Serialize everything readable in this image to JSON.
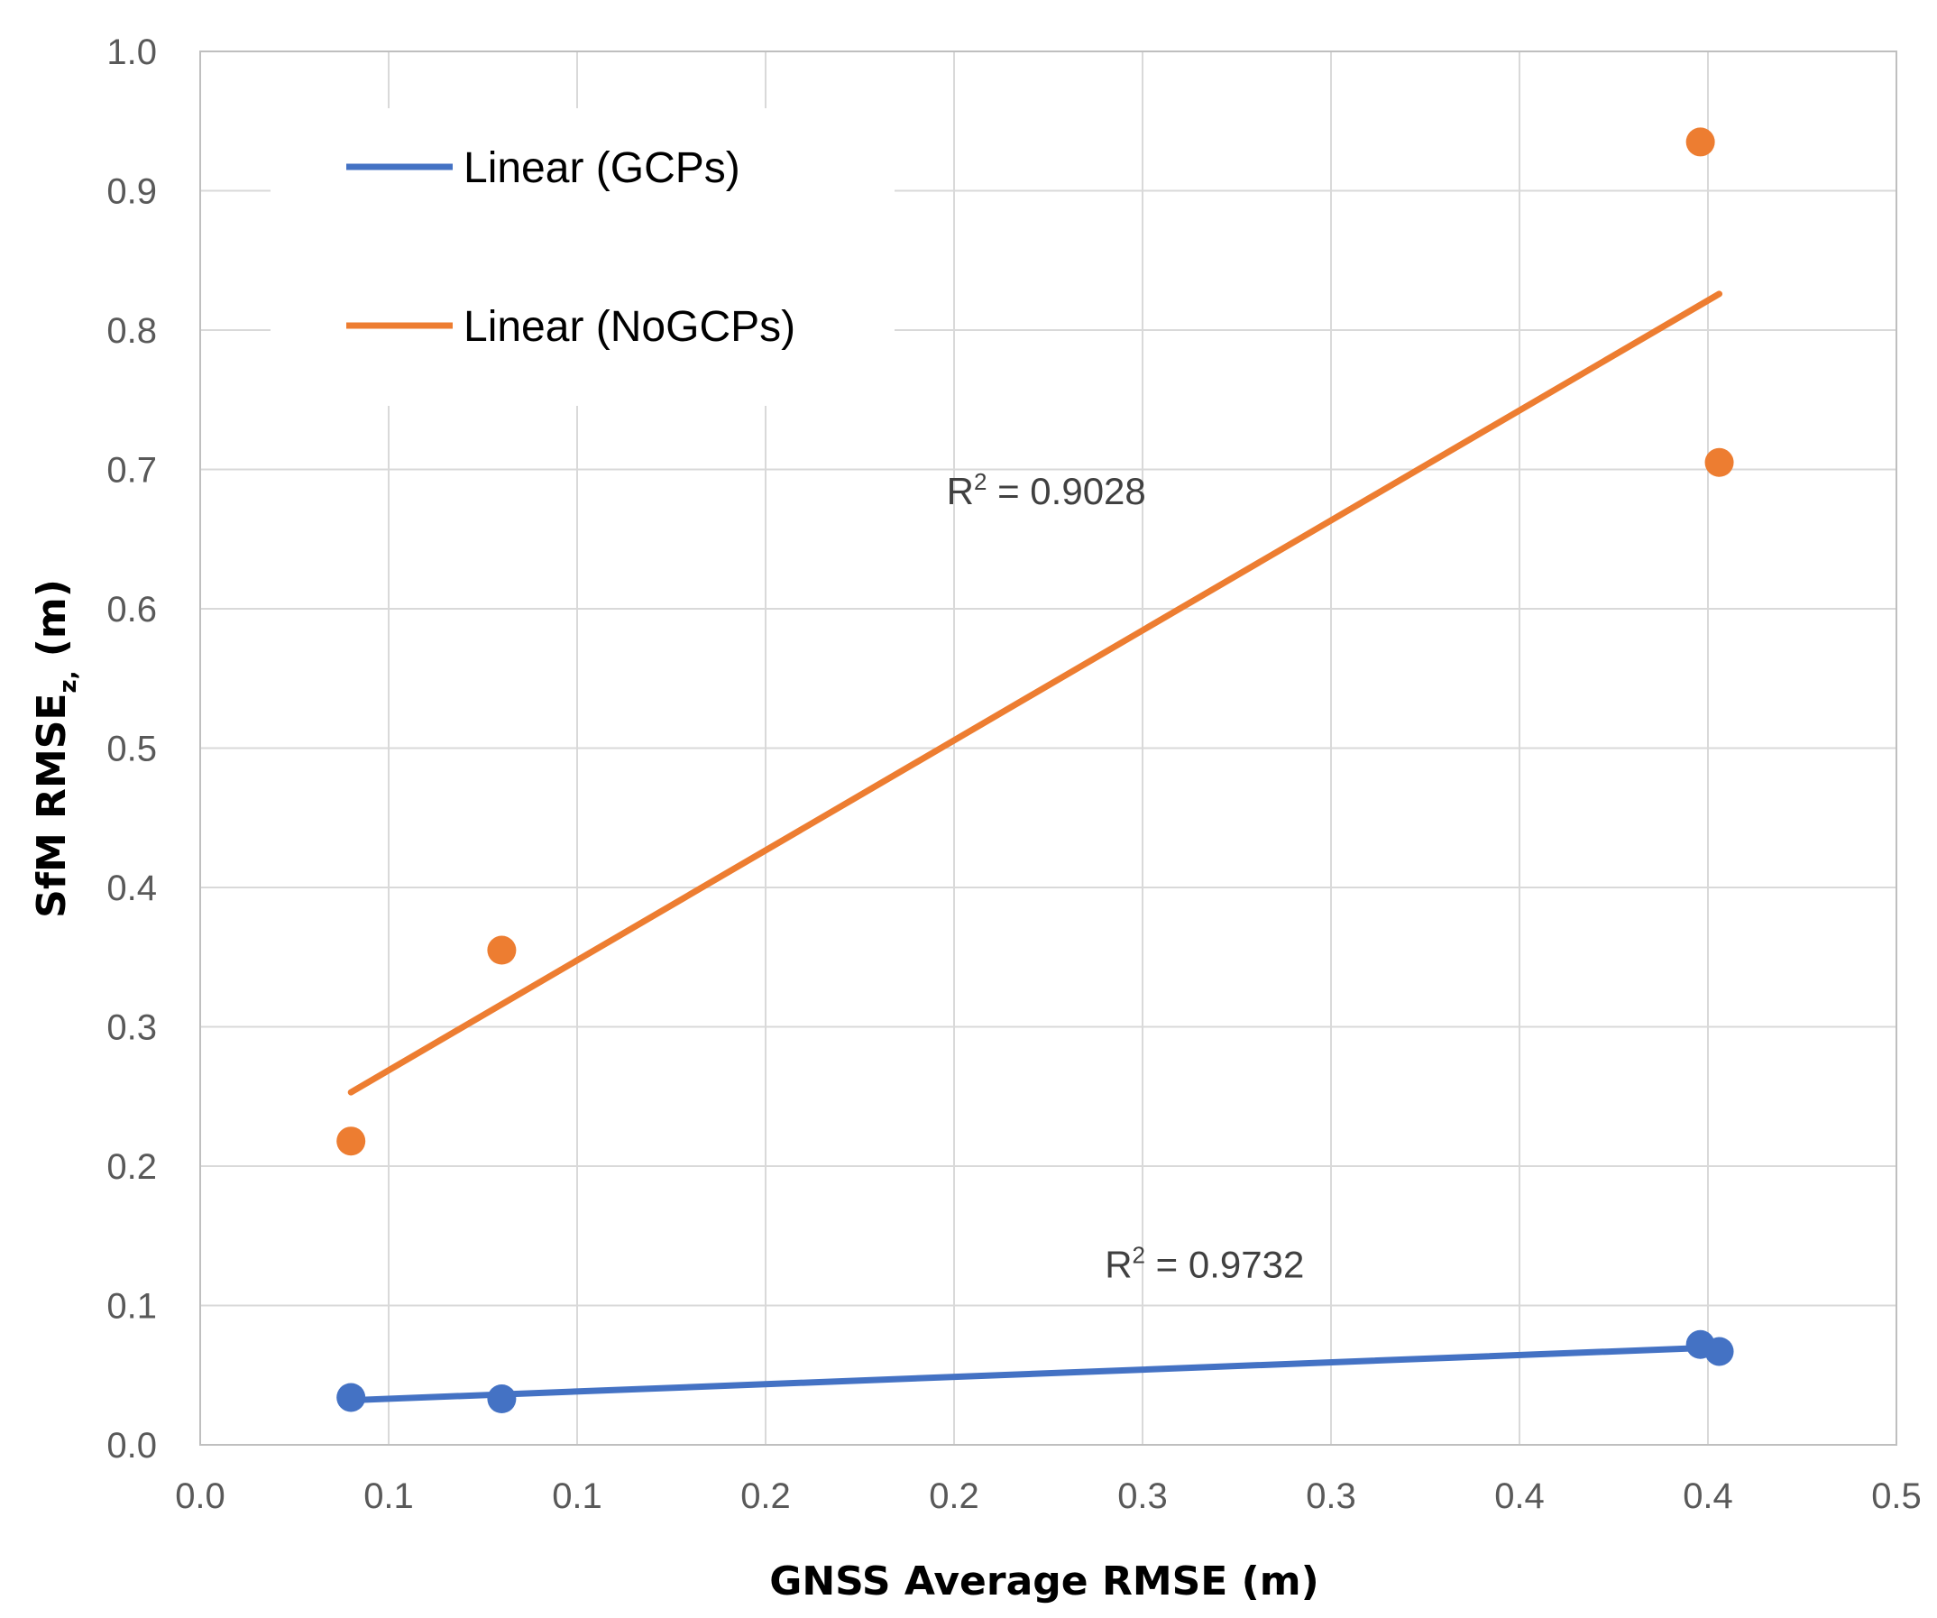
{
  "chart_data": {
    "type": "scatter",
    "x_tick_labels": [
      "0.0",
      "0.1",
      "0.1",
      "0.2",
      "0.2",
      "0.3",
      "0.3",
      "0.4",
      "0.4",
      "0.5"
    ],
    "y_tick_labels": [
      "0.0",
      "0.1",
      "0.2",
      "0.3",
      "0.4",
      "0.5",
      "0.6",
      "0.7",
      "0.8",
      "0.9",
      "1.0"
    ],
    "xlim": [
      0,
      0.45
    ],
    "ylim": [
      0,
      1.0
    ],
    "grid": true,
    "xlabel": "GNSS Average RMSE (m)",
    "ylabel": {
      "base": "SfM RMSE",
      "sub": "z,",
      "tail": " (m)"
    },
    "legend_position": "top-left",
    "series": [
      {
        "name": "GCPs",
        "color": "#4472c4",
        "x": [
          0.04,
          0.08,
          0.398,
          0.403
        ],
        "y": [
          0.034,
          0.033,
          0.072,
          0.067
        ],
        "trendline": {
          "label": "Linear (GCPs)",
          "x": [
            0.04,
            0.403
          ],
          "y": [
            0.032,
            0.07
          ]
        },
        "r2_label": {
          "prefix": "R",
          "sup": "2",
          "text": " = 0.9732",
          "at": [
            0.24,
            0.12
          ]
        }
      },
      {
        "name": "NoGCPs",
        "color": "#ed7d31",
        "x": [
          0.04,
          0.08,
          0.398,
          0.403
        ],
        "y": [
          0.218,
          0.355,
          0.935,
          0.705
        ],
        "trendline": {
          "label": "Linear (NoGCPs)",
          "x": [
            0.04,
            0.403
          ],
          "y": [
            0.253,
            0.826
          ]
        },
        "r2_label": {
          "prefix": "R",
          "sup": "2",
          "text": " = 0.9028",
          "at": [
            0.198,
            0.675
          ]
        }
      }
    ]
  }
}
